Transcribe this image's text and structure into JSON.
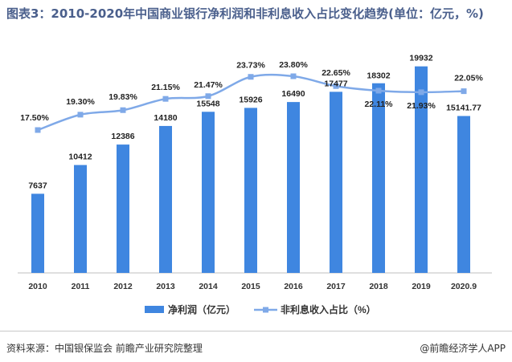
{
  "title": "图表3：2010-2020年中国商业银行净利润和非利息收入占比变化趋势(单位：亿元，%)",
  "footer": {
    "source": "资料来源：中国银保监会 前瞻产业研究院整理",
    "brand": "@前瞻经济学人APP"
  },
  "colors": {
    "bar": "#3f86e0",
    "line": "#7fa9e8",
    "title": "#4a5f8c"
  },
  "chart_data": {
    "type": "bar+line",
    "categories": [
      "2010",
      "2011",
      "2012",
      "2013",
      "2014",
      "2015",
      "2016",
      "2017",
      "2018",
      "2019",
      "2020.9"
    ],
    "bar_labels": [
      "7637",
      "10412",
      "12386",
      "14180",
      "15548",
      "15926",
      "16490",
      "17477",
      "18302",
      "19932",
      "15141.77"
    ],
    "line_labels": [
      "17.50%",
      "19.30%",
      "19.83%",
      "21.15%",
      "21.47%",
      "23.73%",
      "23.80%",
      "22.65%",
      "22.11%",
      "21.93%",
      "22.05%"
    ],
    "series": [
      {
        "name": "净利润（亿元）",
        "type": "bar",
        "values": [
          7637,
          10412,
          12386,
          14180,
          15548,
          15926,
          16490,
          17477,
          18302,
          19932,
          15141.77
        ]
      },
      {
        "name": "非利息收入占比（%）",
        "type": "line",
        "values": [
          17.5,
          19.3,
          19.83,
          21.15,
          21.47,
          23.73,
          23.8,
          22.65,
          22.11,
          21.93,
          22.05
        ]
      }
    ],
    "grid": false,
    "legend_position": "bottom"
  }
}
